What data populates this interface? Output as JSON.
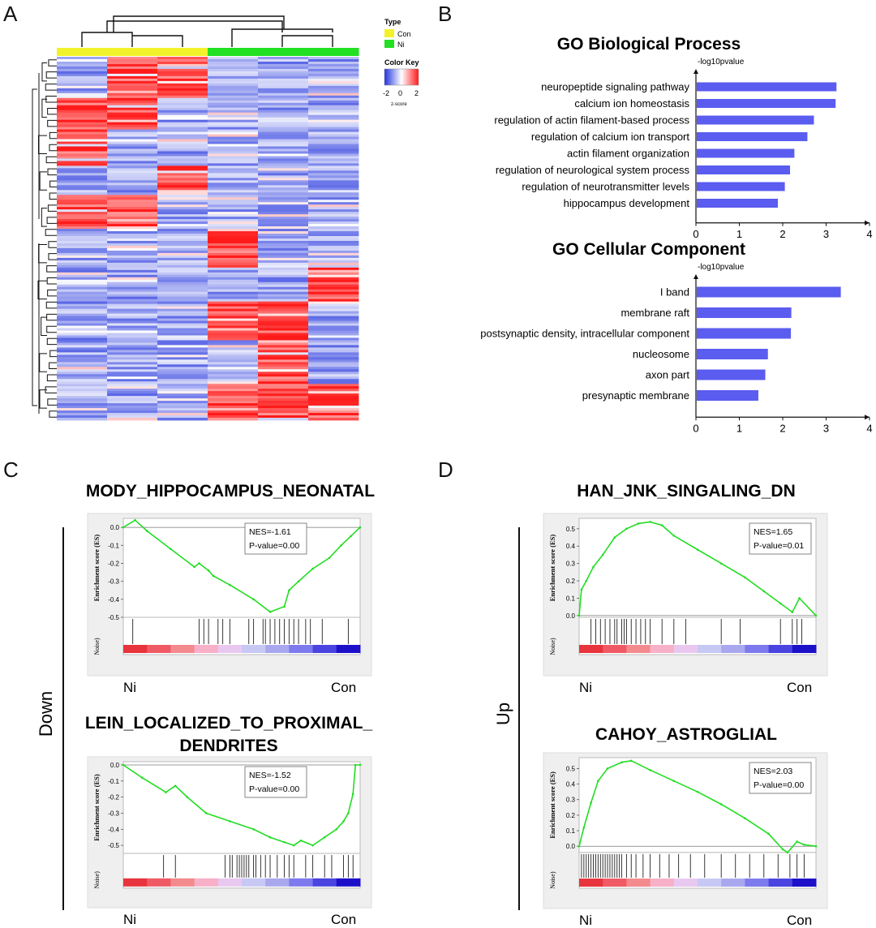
{
  "panels": {
    "a": "A",
    "b": "B",
    "c": "C",
    "d": "D"
  },
  "colors": {
    "con": "#f2f22a",
    "ni": "#22e022",
    "go_bar": "#5b5cf0",
    "es_line": "#22dd22",
    "heat_low": "#2233dd",
    "heat_mid": "#ffffff",
    "heat_high": "#ff1a1a"
  },
  "chart_data": [
    {
      "type": "heatmap",
      "panel": "A",
      "columns": [
        {
          "group": "Con"
        },
        {
          "group": "Con"
        },
        {
          "group": "Con"
        },
        {
          "group": "Ni"
        },
        {
          "group": "Ni"
        },
        {
          "group": "Ni"
        }
      ],
      "legend": {
        "type_title": "Type",
        "type_items": [
          "Con",
          "Ni"
        ],
        "colorkey_title": "Color Key",
        "colorkey_ticks": [
          "-2",
          "0",
          "2"
        ],
        "colorkey_label": "z-score"
      }
    },
    {
      "type": "bar",
      "panel": "B",
      "orientation": "horizontal",
      "title": "GO Biological Process",
      "xlabel": "-log10pvalue",
      "xlim": [
        0,
        4
      ],
      "xticks": [
        "0",
        "1",
        "2",
        "3",
        "4"
      ],
      "categories": [
        "neuropeptide signaling pathway",
        "calcium ion homeostasis",
        "regulation of actin filament-based process",
        "regulation of calcium ion transport",
        "actin filament organization",
        "regulation of neurological system process",
        "regulation of neurotransmitter levels",
        "hippocampus development"
      ],
      "values": [
        3.22,
        3.2,
        2.7,
        2.55,
        2.25,
        2.15,
        2.03,
        1.87
      ]
    },
    {
      "type": "bar",
      "panel": "B",
      "orientation": "horizontal",
      "title": "GO Cellular Component",
      "xlabel": "-log10pvalue",
      "xlim": [
        0,
        4
      ],
      "xticks": [
        "0",
        "1",
        "2",
        "3",
        "4"
      ],
      "categories": [
        "I band",
        "membrane raft",
        "postsynaptic density, intracellular component",
        "nucleosome",
        "axon part",
        "presynaptic membrane"
      ],
      "values": [
        3.32,
        2.18,
        2.17,
        1.64,
        1.58,
        1.42
      ]
    },
    {
      "type": "line",
      "panel": "C",
      "title": "MODY_HIPPOCAMPUS_NEONATAL",
      "ylabel": "Enrichment score (ES)",
      "yticks": [
        "0.0",
        "-0.1",
        "-0.2",
        "-0.3",
        "-0.4",
        "-0.5"
      ],
      "ylim": [
        -0.5,
        0.05
      ],
      "nes": "NES=-1.61",
      "pvalue": "P-value=0.00",
      "rank_label": "Noise)",
      "left_label": "Ni",
      "right_label": "Con",
      "x": [
        0,
        0.05,
        0.1,
        0.2,
        0.3,
        0.32,
        0.36,
        0.38,
        0.45,
        0.55,
        0.62,
        0.68,
        0.7,
        0.74,
        0.8,
        0.87,
        0.92,
        0.96,
        1.0
      ],
      "y": [
        0.0,
        0.04,
        -0.02,
        -0.12,
        -0.22,
        -0.2,
        -0.24,
        -0.27,
        -0.32,
        -0.4,
        -0.47,
        -0.44,
        -0.35,
        -0.3,
        -0.23,
        -0.17,
        -0.1,
        -0.05,
        0.0
      ],
      "hits": [
        0.04,
        0.32,
        0.34,
        0.36,
        0.4,
        0.42,
        0.45,
        0.53,
        0.55,
        0.59,
        0.6,
        0.62,
        0.64,
        0.66,
        0.68,
        0.7,
        0.72,
        0.74,
        0.77,
        0.79,
        0.84,
        0.95
      ]
    },
    {
      "type": "line",
      "panel": "C",
      "title": "LEIN_LOCALIZED_TO_PROXIMAL_DENDRITES",
      "ylabel": "Enrichment score (ES)",
      "yticks": [
        "0.0",
        "-0.1",
        "-0.2",
        "-0.3",
        "-0.4",
        "-0.5"
      ],
      "ylim": [
        -0.55,
        0.02
      ],
      "nes": "NES=-1.52",
      "pvalue": "P-value=0.00",
      "rank_label": "Noise)",
      "left_label": "Ni",
      "right_label": "Con",
      "x": [
        0,
        0.08,
        0.18,
        0.22,
        0.27,
        0.35,
        0.45,
        0.55,
        0.62,
        0.68,
        0.72,
        0.75,
        0.8,
        0.85,
        0.9,
        0.93,
        0.95,
        0.97,
        0.98,
        1.0
      ],
      "y": [
        0.0,
        -0.08,
        -0.17,
        -0.13,
        -0.2,
        -0.3,
        -0.35,
        -0.4,
        -0.45,
        -0.48,
        -0.5,
        -0.47,
        -0.5,
        -0.45,
        -0.4,
        -0.35,
        -0.3,
        -0.18,
        0.0,
        0.0
      ],
      "hits": [
        0.17,
        0.22,
        0.43,
        0.45,
        0.46,
        0.48,
        0.49,
        0.5,
        0.51,
        0.52,
        0.53,
        0.55,
        0.56,
        0.58,
        0.6,
        0.62,
        0.65,
        0.68,
        0.7,
        0.72,
        0.77,
        0.8,
        0.85,
        0.88,
        0.93,
        0.95,
        0.97
      ]
    },
    {
      "type": "line",
      "panel": "D",
      "title": "HAN_JNK_SINGALING_DN",
      "ylabel": "Enrichment score (ES)",
      "yticks": [
        "0.5",
        "0.4",
        "0.3",
        "0.2",
        "0.1",
        "0.0"
      ],
      "ylim": [
        -0.01,
        0.56
      ],
      "nes": "NES=1.65",
      "pvalue": "P-value=0.01",
      "rank_label": "Noise)",
      "left_label": "Ni",
      "right_label": "Con",
      "x": [
        0,
        0.01,
        0.03,
        0.06,
        0.1,
        0.15,
        0.2,
        0.25,
        0.3,
        0.35,
        0.4,
        0.5,
        0.6,
        0.7,
        0.78,
        0.85,
        0.9,
        0.93,
        1.0
      ],
      "y": [
        0.0,
        0.15,
        0.2,
        0.28,
        0.35,
        0.45,
        0.5,
        0.53,
        0.54,
        0.52,
        0.46,
        0.38,
        0.3,
        0.22,
        0.14,
        0.07,
        0.02,
        0.1,
        0.0
      ],
      "hits": [
        0.05,
        0.07,
        0.09,
        0.11,
        0.13,
        0.15,
        0.16,
        0.18,
        0.19,
        0.2,
        0.22,
        0.24,
        0.26,
        0.28,
        0.3,
        0.35,
        0.4,
        0.45,
        0.6,
        0.68,
        0.85,
        0.9,
        0.92,
        0.94
      ]
    },
    {
      "type": "line",
      "panel": "D",
      "title": "CAHOY_ASTROGLIAL",
      "ylabel": "Enrichment score (ES)",
      "yticks": [
        "0.5",
        "0.4",
        "0.3",
        "0.2",
        "0.1",
        "0.0"
      ],
      "ylim": [
        -0.04,
        0.57
      ],
      "nes": "NES=2.03",
      "pvalue": "P-value=0.00",
      "rank_label": "Noise)",
      "left_label": "Ni",
      "right_label": "Con",
      "x": [
        0,
        0.02,
        0.05,
        0.08,
        0.12,
        0.18,
        0.22,
        0.3,
        0.4,
        0.5,
        0.6,
        0.7,
        0.8,
        0.86,
        0.88,
        0.92,
        0.95,
        1.0
      ],
      "y": [
        0.0,
        0.12,
        0.28,
        0.42,
        0.5,
        0.54,
        0.55,
        0.49,
        0.42,
        0.35,
        0.27,
        0.18,
        0.08,
        -0.02,
        -0.04,
        0.03,
        0.01,
        0.0
      ],
      "hits": [
        0.01,
        0.02,
        0.03,
        0.04,
        0.05,
        0.06,
        0.07,
        0.08,
        0.09,
        0.1,
        0.11,
        0.12,
        0.13,
        0.14,
        0.15,
        0.16,
        0.17,
        0.18,
        0.2,
        0.22,
        0.24,
        0.27,
        0.3,
        0.34,
        0.38,
        0.42,
        0.47,
        0.53,
        0.6,
        0.66,
        0.72,
        0.78,
        0.84,
        0.89,
        0.92,
        0.95
      ]
    }
  ],
  "side_labels": {
    "down": "Down",
    "up": "Up"
  },
  "title_wrap": {
    "lein_line1": "LEIN_LOCALIZED_TO_PROXIMAL_",
    "lein_line2": "DENDRITES"
  }
}
